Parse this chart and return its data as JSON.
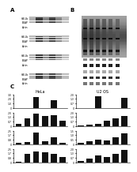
{
  "background_color": "#ffffff",
  "panel_A": {
    "label": "A",
    "num_blot_groups": 4,
    "blot_color_dark": "#1a1a1a",
    "blot_color_mid": "#555555",
    "blot_color_light": "#aaaaaa",
    "blot_color_bg": "#d0d0d0"
  },
  "panel_B": {
    "label": "B"
  },
  "panel_C": {
    "label": "C",
    "bar_color": "#111111",
    "bar_groups_left": [
      [
        0,
        0,
        2.5,
        0,
        1.8,
        0
      ],
      [
        0.3,
        1.2,
        1.8,
        1.5,
        1.6,
        0.8
      ],
      [
        0.2,
        0.4,
        2.2,
        0.5,
        1.2,
        0.3
      ],
      [
        0.1,
        1.5,
        2.0,
        1.8,
        1.5,
        0.9
      ]
    ],
    "bar_groups_right": [
      [
        0,
        0,
        1.8,
        0,
        0,
        1.5
      ],
      [
        0.1,
        0.2,
        0.3,
        0.8,
        1.2,
        1.5
      ],
      [
        0.1,
        0.3,
        0.5,
        0.4,
        0.8,
        1.2
      ],
      [
        0.2,
        0.5,
        1.0,
        0.8,
        1.2,
        1.8
      ]
    ],
    "ylabels_left": [
      "0",
      "0.5",
      "1.0",
      "1.5",
      "2.0",
      "2.5"
    ],
    "ylabels_right": [
      "0",
      "0.5",
      "1.0",
      "1.5",
      "2.0"
    ],
    "left_title": "HeLa",
    "right_title": "U2 OS"
  }
}
